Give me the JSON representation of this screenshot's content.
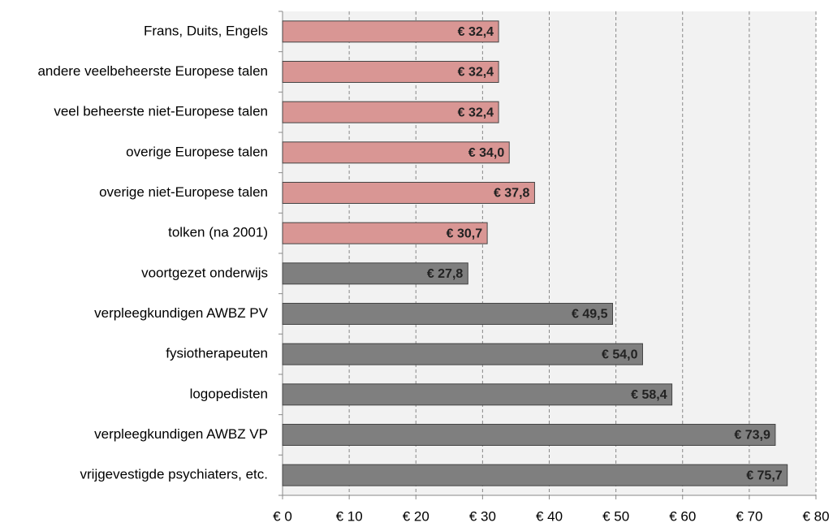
{
  "chart_data": {
    "type": "hbar",
    "categories": [
      "Frans, Duits, Engels",
      "andere veelbeheerste Europese talen",
      "veel beheerste niet-Europese talen",
      "overige Europese talen",
      "overige niet-Europese talen",
      "tolken (na 2001)",
      "voortgezet onderwijs",
      "verpleegkundigen AWBZ PV",
      "fysiotherapeuten",
      "logopedisten",
      "verpleegkundigen AWBZ VP",
      "vrijgevestigde psychiaters, etc."
    ],
    "values": [
      32.4,
      32.4,
      32.4,
      34.0,
      37.8,
      30.7,
      27.8,
      49.5,
      54.0,
      58.4,
      73.9,
      75.7
    ],
    "value_labels": [
      "€ 32,4",
      "€ 32,4",
      "€ 32,4",
      "€ 34,0",
      "€ 37,8",
      "€ 30,7",
      "€ 27,8",
      "€ 49,5",
      "€ 54,0",
      "€ 58,4",
      "€ 73,9",
      "€ 75,7"
    ],
    "colors": [
      "#d99694",
      "#d99694",
      "#d99694",
      "#d99694",
      "#d99694",
      "#d99694",
      "#7f7f7f",
      "#7f7f7f",
      "#7f7f7f",
      "#7f7f7f",
      "#7f7f7f",
      "#7f7f7f"
    ],
    "xlim": [
      0,
      80
    ],
    "xticks": [
      {
        "value": 0,
        "label": "€ 0"
      },
      {
        "value": 10,
        "label": "€ 10"
      },
      {
        "value": 20,
        "label": "€ 20"
      },
      {
        "value": 30,
        "label": "€ 30"
      },
      {
        "value": 40,
        "label": "€ 40"
      },
      {
        "value": 50,
        "label": "€ 50"
      },
      {
        "value": 60,
        "label": "€ 60"
      },
      {
        "value": 70,
        "label": "€ 70"
      },
      {
        "value": 80,
        "label": "€ 80"
      }
    ],
    "grid": true
  }
}
